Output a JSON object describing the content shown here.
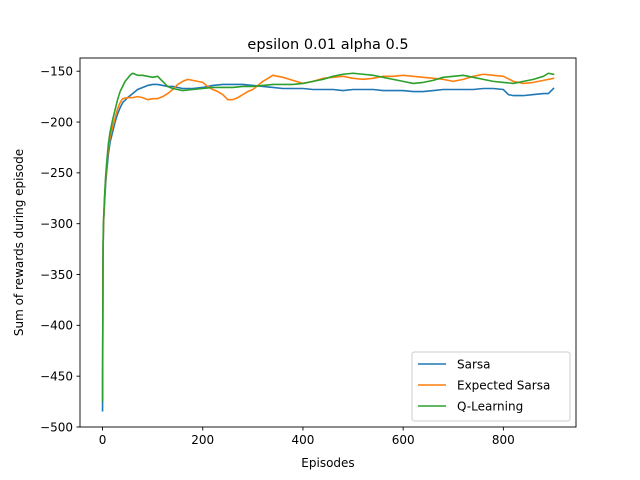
{
  "chart_data": {
    "type": "line",
    "title": "epsilon 0.01 alpha 0.5",
    "xlabel": "Episodes",
    "ylabel": "Sum of rewards during episode",
    "xlim": [
      -45,
      945
    ],
    "ylim": [
      -500,
      -137
    ],
    "xticks": [
      0,
      200,
      400,
      600,
      800
    ],
    "yticks": [
      -500,
      -450,
      -400,
      -350,
      -300,
      -250,
      -200,
      -150
    ],
    "xtick_labels": [
      "0",
      "200",
      "400",
      "600",
      "800"
    ],
    "ytick_labels": [
      "−500",
      "−450",
      "−400",
      "−350",
      "−300",
      "−250",
      "−200",
      "−150"
    ],
    "grid": false,
    "legend_position": "lower right",
    "series": [
      {
        "name": "Sarsa",
        "color": "#1f77b4",
        "x": [
          0,
          1,
          2,
          3,
          4,
          6,
          8,
          10,
          12,
          15,
          20,
          25,
          30,
          35,
          40,
          50,
          60,
          70,
          80,
          90,
          100,
          110,
          120,
          130,
          140,
          150,
          160,
          170,
          180,
          200,
          220,
          240,
          260,
          280,
          300,
          320,
          340,
          360,
          380,
          400,
          420,
          440,
          460,
          480,
          500,
          520,
          540,
          560,
          580,
          600,
          620,
          640,
          660,
          680,
          700,
          720,
          740,
          760,
          780,
          800,
          810,
          820,
          840,
          860,
          880,
          890,
          900
        ],
        "y": [
          -484,
          -330,
          -300,
          -290,
          -280,
          -262,
          -250,
          -240,
          -230,
          -220,
          -210,
          -200,
          -192,
          -186,
          -181,
          -176,
          -172,
          -168,
          -166,
          -164,
          -163,
          -163,
          -164,
          -165,
          -165,
          -166,
          -167,
          -167,
          -167,
          -166,
          -164,
          -163,
          -163,
          -163,
          -164,
          -165,
          -166,
          -167,
          -167,
          -167,
          -168,
          -168,
          -168,
          -169,
          -168,
          -168,
          -168,
          -169,
          -169,
          -169,
          -170,
          -170,
          -169,
          -168,
          -168,
          -168,
          -168,
          -167,
          -167,
          -168,
          -173,
          -174,
          -174,
          -173,
          -172,
          -172,
          -167
        ]
      },
      {
        "name": "Expected Sarsa",
        "color": "#ff7f0e",
        "x": [
          0,
          1,
          2,
          3,
          4,
          6,
          8,
          10,
          12,
          15,
          20,
          25,
          30,
          35,
          40,
          50,
          60,
          70,
          80,
          90,
          100,
          110,
          120,
          130,
          140,
          150,
          160,
          170,
          180,
          190,
          200,
          210,
          220,
          230,
          240,
          250,
          260,
          270,
          280,
          290,
          300,
          320,
          340,
          360,
          380,
          400,
          420,
          440,
          460,
          480,
          500,
          520,
          540,
          560,
          580,
          600,
          620,
          640,
          660,
          680,
          700,
          720,
          740,
          760,
          780,
          800,
          820,
          840,
          860,
          880,
          890,
          900
        ],
        "y": [
          -462,
          -325,
          -300,
          -288,
          -276,
          -258,
          -245,
          -234,
          -224,
          -215,
          -205,
          -196,
          -187,
          -181,
          -177,
          -176,
          -176,
          -175,
          -176,
          -178,
          -177,
          -177,
          -175,
          -172,
          -168,
          -163,
          -160,
          -158,
          -159,
          -160,
          -161,
          -165,
          -168,
          -170,
          -173,
          -178,
          -178,
          -176,
          -173,
          -170,
          -168,
          -160,
          -154,
          -156,
          -159,
          -162,
          -160,
          -157,
          -156,
          -155,
          -157,
          -158,
          -157,
          -155,
          -155,
          -154,
          -155,
          -156,
          -157,
          -158,
          -160,
          -158,
          -155,
          -153,
          -154,
          -155,
          -160,
          -162,
          -161,
          -159,
          -158,
          -157
        ]
      },
      {
        "name": "Q-Learning",
        "color": "#2ca02c",
        "x": [
          0,
          1,
          2,
          3,
          4,
          6,
          8,
          10,
          12,
          15,
          20,
          25,
          30,
          35,
          40,
          45,
          50,
          55,
          60,
          65,
          70,
          80,
          90,
          100,
          110,
          120,
          130,
          140,
          150,
          160,
          180,
          200,
          220,
          240,
          260,
          280,
          300,
          320,
          340,
          360,
          380,
          400,
          420,
          440,
          460,
          480,
          500,
          520,
          540,
          560,
          580,
          600,
          620,
          640,
          660,
          680,
          700,
          720,
          740,
          760,
          780,
          800,
          820,
          840,
          860,
          880,
          890,
          900
        ],
        "y": [
          -474,
          -320,
          -295,
          -285,
          -273,
          -255,
          -242,
          -230,
          -220,
          -210,
          -198,
          -188,
          -178,
          -170,
          -165,
          -160,
          -157,
          -154,
          -152,
          -153,
          -154,
          -154,
          -155,
          -156,
          -155,
          -160,
          -165,
          -167,
          -168,
          -169,
          -168,
          -167,
          -166,
          -166,
          -166,
          -165,
          -165,
          -164,
          -163,
          -163,
          -163,
          -162,
          -160,
          -158,
          -155,
          -153,
          -152,
          -153,
          -154,
          -156,
          -158,
          -160,
          -162,
          -161,
          -159,
          -156,
          -155,
          -154,
          -156,
          -158,
          -160,
          -161,
          -162,
          -160,
          -158,
          -155,
          -152,
          -153
        ]
      }
    ]
  }
}
